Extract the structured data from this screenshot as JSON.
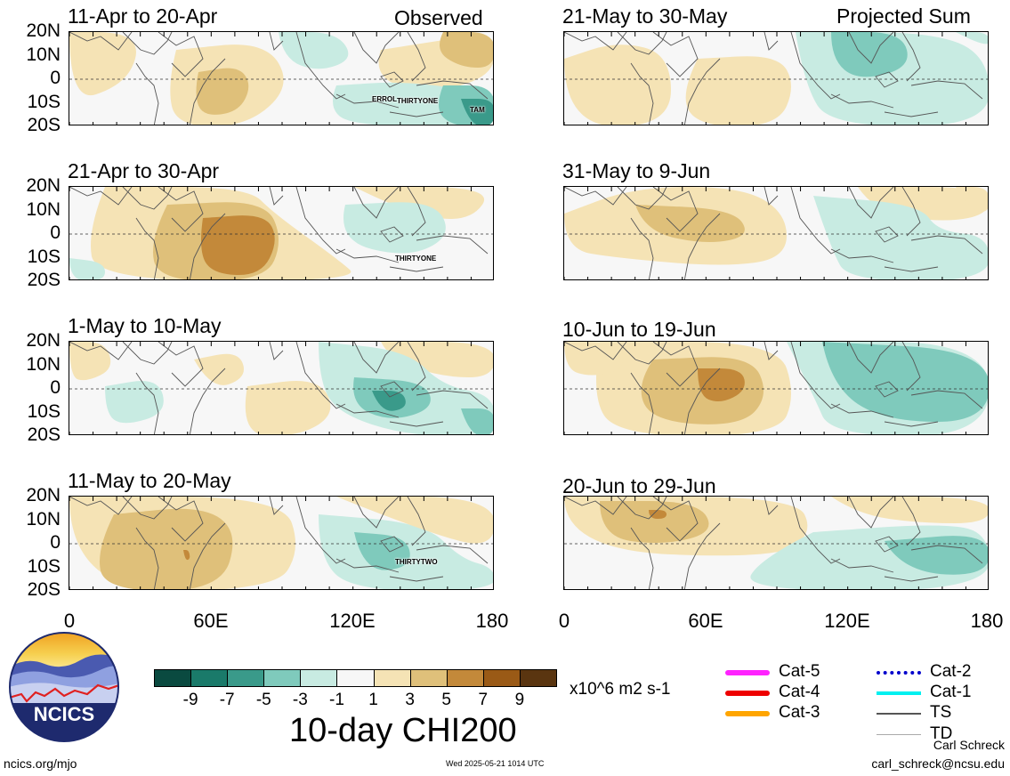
{
  "panels": [
    {
      "title": "11-Apr to 20-Apr",
      "tag": "Observed",
      "storms": [
        "ERROL",
        "THIRTYONE",
        "TAM"
      ]
    },
    {
      "title": "21-May to 30-May",
      "tag": "Projected Sum",
      "storms": []
    },
    {
      "title": "21-Apr to 30-Apr",
      "tag": "",
      "storms": [
        "THIRTYONE"
      ]
    },
    {
      "title": "31-May to 9-Jun",
      "tag": "",
      "storms": []
    },
    {
      "title": "1-May to 10-May",
      "tag": "",
      "storms": []
    },
    {
      "title": "10-Jun to 19-Jun",
      "tag": "",
      "storms": []
    },
    {
      "title": "11-May to 20-May",
      "tag": "",
      "storms": [
        "THIRTYTWO"
      ]
    },
    {
      "title": "20-Jun to 29-Jun",
      "tag": "",
      "storms": []
    }
  ],
  "lat_labels": [
    "20N",
    "10N",
    "0",
    "10S",
    "20S"
  ],
  "lon_labels": [
    "0",
    "60E",
    "120E",
    "180"
  ],
  "colorbar": {
    "labels": [
      "-9",
      "-7",
      "-5",
      "-3",
      "-1",
      "1",
      "3",
      "5",
      "7",
      "9"
    ],
    "colors": [
      "#0a4a40",
      "#1a7a6a",
      "#3a9a8a",
      "#7fcabc",
      "#c8ebe2",
      "#f7f7f7",
      "#f5e3b5",
      "#dfc07a",
      "#c3893a",
      "#9a5a16",
      "#5a3510"
    ],
    "units": "x10^6 m2 s-1"
  },
  "title": "10-day CHI200",
  "legend": [
    {
      "label": "Cat-5",
      "color": "#ff22ff"
    },
    {
      "label": "Cat-4",
      "color": "#ee0000"
    },
    {
      "label": "Cat-3",
      "color": "#ffa500"
    },
    {
      "label": "Cat-2",
      "color": "#0000cc"
    },
    {
      "label": "Cat-1",
      "color": "#00f0f0"
    },
    {
      "label": "TS",
      "color": "#555555"
    },
    {
      "label": "TD",
      "color": "#aaaaaa"
    }
  ],
  "logo_text": "NCICS",
  "footer_left": "ncics.org/mjo",
  "timestamp": "Wed 2025-05-21 1014 UTC",
  "author": "Carl Schreck",
  "email": "carl_schreck@ncsu.edu"
}
